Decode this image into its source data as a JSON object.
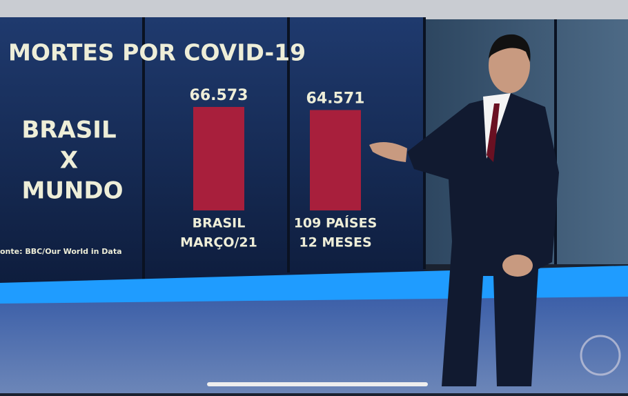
{
  "chart_data": {
    "type": "bar",
    "title": "MORTES POR COVID-19",
    "subtitle": [
      "BRASIL",
      "X",
      "MUNDO"
    ],
    "source": "onte: BBC/Our World in Data",
    "categories": [
      [
        "BRASIL",
        "MARÇO/21"
      ],
      [
        "109 PAÍSES",
        "12 MESES"
      ]
    ],
    "values": [
      66573,
      64571
    ],
    "value_labels": [
      "66.573",
      "64.571"
    ],
    "color": "#a81f3c"
  }
}
